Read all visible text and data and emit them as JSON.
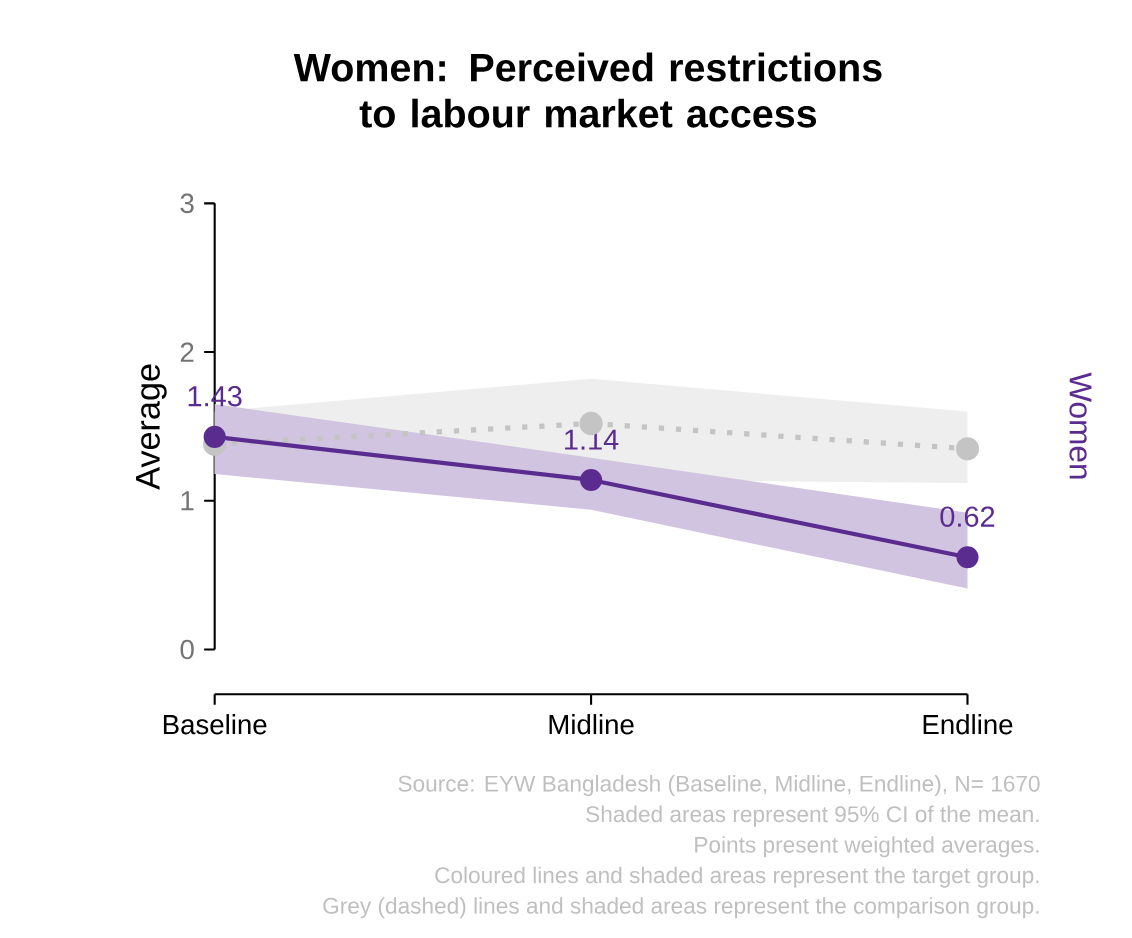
{
  "chart_data": {
    "type": "line",
    "title": "Women: Perceived restrictions to labour market access",
    "ylabel": "Average",
    "categories": [
      "Baseline",
      "Midline",
      "Endline"
    ],
    "series": [
      {
        "color": "#c4c4c4",
        "values": [
          1.38,
          1.52,
          1.35
        ],
        "lower": [
          1.18,
          1.14,
          1.12
        ],
        "upper": [
          1.6,
          1.82,
          1.6
        ],
        "line_style": "dotted"
      },
      {
        "name": "Women",
        "color": "#5b2c8f",
        "values": [
          1.43,
          1.14,
          0.62
        ],
        "lower": [
          1.18,
          0.94,
          0.41
        ],
        "upper": [
          1.65,
          1.29,
          0.92
        ],
        "line_style": "solid",
        "value_labels": [
          "1.43",
          "1.14",
          "0.62"
        ]
      }
    ],
    "ylim": [
      0,
      3
    ],
    "yticks": [
      0,
      1,
      2,
      3
    ],
    "marker": "circle",
    "annotations": [
      "Source: EYW Bangladesh (Baseline, Midline, Endline), N= 1670",
      "Shaded areas represent 95% CI of the mean.",
      "Points present weighted averages.",
      "Coloured lines and shaded areas represent the target group.",
      "Grey (dashed) lines and shaded areas represent the comparison group."
    ]
  }
}
